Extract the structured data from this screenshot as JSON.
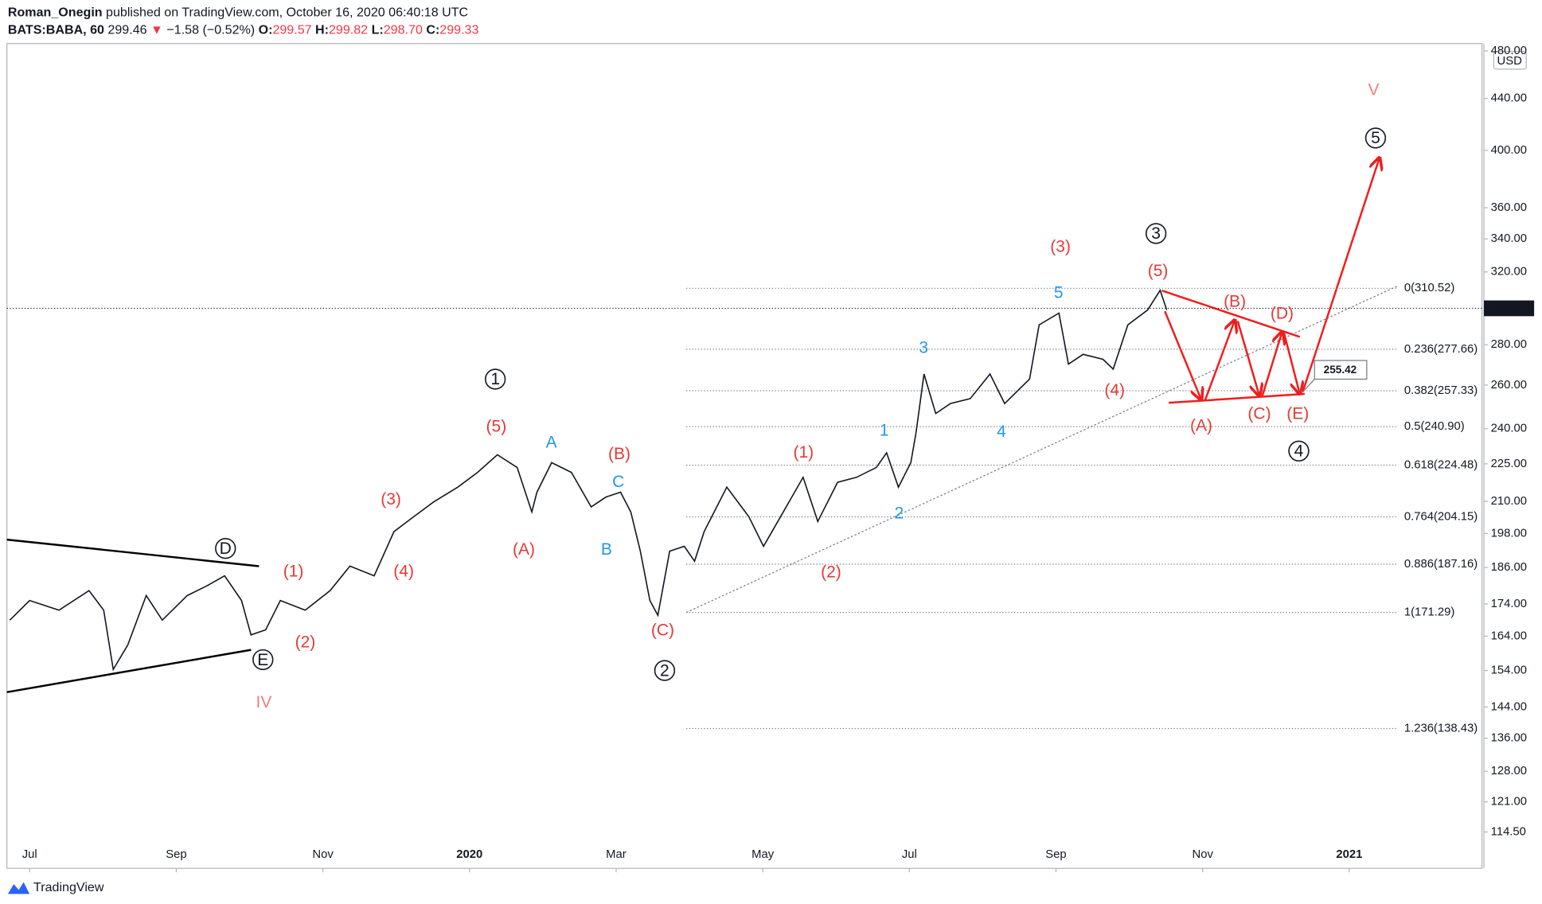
{
  "header": {
    "line1": [
      {
        "text": "Roman_Onegin",
        "color": "#131722",
        "bold": true
      },
      {
        "text": " published on TradingView.com, October 16, 2020 06:40:18 UTC",
        "color": "#131722",
        "bold": false
      }
    ],
    "line2": [
      {
        "text": "BATS:BABA, 60",
        "color": "#131722",
        "bold": true
      },
      {
        "text": "  299.46 ",
        "color": "#131722",
        "bold": false
      },
      {
        "text": "▼",
        "color": "#f23645",
        "bold": false
      },
      {
        "text": " −1.58 (−0.52%) ",
        "color": "#131722",
        "bold": false
      },
      {
        "text": "O:",
        "color": "#131722",
        "bold": true
      },
      {
        "text": "299.57 ",
        "color": "#f23645",
        "bold": false
      },
      {
        "text": "H:",
        "color": "#131722",
        "bold": true
      },
      {
        "text": "299.82 ",
        "color": "#f23645",
        "bold": false
      },
      {
        "text": "L:",
        "color": "#131722",
        "bold": true
      },
      {
        "text": "298.70 ",
        "color": "#f23645",
        "bold": false
      },
      {
        "text": "C:",
        "color": "#131722",
        "bold": true
      },
      {
        "text": "299.33",
        "color": "#f23645",
        "bold": false
      }
    ]
  },
  "chart_data": {
    "type": "line",
    "color": "#131722",
    "log_scale": true,
    "currency": "USD",
    "x": [
      -0.27,
      0,
      0.4,
      0.81,
      1.01,
      1.14,
      1.34,
      1.59,
      1.81,
      2.15,
      2.42,
      2.66,
      2.89,
      3.02,
      3.22,
      3.42,
      3.76,
      4.1,
      4.37,
      4.7,
      4.97,
      5.24,
      5.51,
      5.84,
      6.11,
      6.38,
      6.65,
      6.85,
      6.92,
      7.12,
      7.39,
      7.66,
      7.86,
      8.06,
      8.2,
      8.33,
      8.46,
      8.57,
      8.73,
      8.93,
      9.07,
      9.2,
      9.51,
      9.81,
      10.01,
      10.28,
      10.55,
      10.75,
      11.02,
      11.28,
      11.55,
      11.69,
      11.85,
      12.02,
      12.09,
      12.2,
      12.36,
      12.56,
      12.83,
      13.1,
      13.3,
      13.64,
      13.77,
      14.04,
      14.17,
      14.37,
      14.64,
      14.78,
      14.98,
      15.25,
      15.42,
      15.51
    ],
    "values": [
      168.9,
      175.1,
      172.0,
      178.3,
      172.0,
      154.3,
      161.4,
      176.7,
      168.9,
      176.7,
      179.9,
      183.2,
      175.1,
      164.4,
      165.9,
      175.1,
      172.0,
      178.3,
      186.5,
      183.2,
      198.7,
      204.2,
      209.8,
      215.6,
      221.5,
      228.8,
      223.5,
      206.0,
      213.6,
      225.5,
      221.5,
      207.9,
      211.7,
      213.6,
      206.0,
      191.7,
      175.1,
      170.4,
      191.7,
      193.4,
      188.2,
      198.7,
      215.6,
      204.2,
      193.4,
      206.0,
      219.5,
      202.4,
      217.5,
      219.5,
      223.5,
      229.6,
      215.6,
      225.5,
      238.0,
      265.3,
      246.8,
      251.3,
      253.6,
      265.3,
      251.3,
      262.9,
      290.4,
      296.7,
      270.2,
      275.1,
      272.6,
      267.7,
      290.4,
      298.4,
      309.4,
      298.4
    ],
    "xlim": [
      -0.31,
      19.81
    ],
    "xticks": [
      {
        "value": 0,
        "label": "Jul"
      },
      {
        "value": 2,
        "label": "Sep"
      },
      {
        "value": 4,
        "label": "Nov"
      },
      {
        "value": 6,
        "label": "2020"
      },
      {
        "value": 8,
        "label": "Mar"
      },
      {
        "value": 10,
        "label": "May"
      },
      {
        "value": 12,
        "label": "Jul"
      },
      {
        "value": 14,
        "label": "Sep"
      },
      {
        "value": 16,
        "label": "Nov"
      },
      {
        "value": 18,
        "label": "2021"
      }
    ],
    "ylim": [
      107.1,
      484
    ],
    "yticks": [
      {
        "value": 114.5,
        "label": "114.50"
      },
      {
        "value": 121,
        "label": "121.00"
      },
      {
        "value": 128,
        "label": "128.00"
      },
      {
        "value": 136,
        "label": "136.00"
      },
      {
        "value": 144,
        "label": "144.00"
      },
      {
        "value": 154,
        "label": "154.00"
      },
      {
        "value": 164,
        "label": "164.00"
      },
      {
        "value": 174,
        "label": "174.00"
      },
      {
        "value": 186,
        "label": "186.00"
      },
      {
        "value": 198,
        "label": "198.00"
      },
      {
        "value": 210,
        "label": "210.00"
      },
      {
        "value": 225,
        "label": "225.00"
      },
      {
        "value": 240,
        "label": "240.00"
      },
      {
        "value": 260,
        "label": "260.00"
      },
      {
        "value": 280,
        "label": "280.00"
      },
      {
        "value": 320,
        "label": "320.00"
      },
      {
        "value": 340,
        "label": "340.00"
      },
      {
        "value": 360,
        "label": "360.00"
      },
      {
        "value": 400,
        "label": "400.00"
      },
      {
        "value": 440,
        "label": "440.00"
      },
      {
        "value": 480,
        "label": "480.00"
      }
    ],
    "last_price": {
      "value": 299.33,
      "label": "299.33"
    },
    "fib_levels": [
      {
        "value": 310.52,
        "label": "0(310.52)"
      },
      {
        "value": 277.66,
        "label": "0.236(277.66)"
      },
      {
        "value": 257.33,
        "label": "0.382(257.33)"
      },
      {
        "value": 240.9,
        "label": "0.5(240.90)"
      },
      {
        "value": 224.48,
        "label": "0.618(224.48)"
      },
      {
        "value": 204.15,
        "label": "0.764(204.15)"
      },
      {
        "value": 187.16,
        "label": "0.886(187.16)"
      },
      {
        "value": 171.29,
        "label": "1(171.29)"
      },
      {
        "value": 138.43,
        "label": "1.236(138.43)"
      }
    ],
    "annotations": [
      {
        "text": "(5)",
        "color": "#e53935"
      },
      {
        "text": "A",
        "color": "#2196f3"
      },
      {
        "text": "(B)",
        "color": "#e53935"
      },
      {
        "text": "C",
        "color": "#2196f3"
      },
      {
        "text": "(A)",
        "color": "#e53935"
      },
      {
        "text": "B",
        "color": "#2196f3"
      },
      {
        "text": "(3)",
        "color": "#e53935"
      },
      {
        "text": "(4)",
        "color": "#e53935"
      },
      {
        "text": "(1)",
        "color": "#e53935"
      },
      {
        "text": "(2)",
        "color": "#e53935"
      },
      {
        "text": "(C)",
        "color": "#e53935"
      },
      {
        "text": "(1)",
        "color": "#e53935"
      },
      {
        "text": "(2)",
        "color": "#e53935"
      },
      {
        "text": "1",
        "color": "#2196f3"
      },
      {
        "text": "2",
        "color": "#2196f3"
      },
      {
        "text": "3",
        "color": "#2196f3"
      },
      {
        "text": "4",
        "color": "#2196f3"
      },
      {
        "text": "5",
        "color": "#2196f3"
      },
      {
        "text": "(3)",
        "color": "#e53935"
      },
      {
        "text": "(4)",
        "color": "#e53935"
      },
      {
        "text": "(5)",
        "color": "#e53935"
      },
      {
        "text": "(B)",
        "color": "#e53935"
      },
      {
        "text": "(D)",
        "color": "#e53935"
      },
      {
        "text": "(A)",
        "color": "#e53935"
      },
      {
        "text": "(C)",
        "color": "#e53935"
      },
      {
        "text": "(E)",
        "color": "#e53935"
      },
      {
        "text": "IV",
        "color": "#f08080"
      },
      {
        "text": "V",
        "color": "#f08080"
      },
      {
        "text": "1",
        "color": "#131722",
        "circled": true
      },
      {
        "text": "2",
        "color": "#131722",
        "circled": true
      },
      {
        "text": "3",
        "color": "#131722",
        "circled": true
      },
      {
        "text": "4",
        "color": "#131722",
        "circled": true
      },
      {
        "text": "5",
        "color": "#131722",
        "circled": true
      },
      {
        "text": "D",
        "color": "#131722",
        "circled": true
      },
      {
        "text": "E",
        "color": "#131722",
        "circled": true
      }
    ],
    "target_label": "255.42"
  },
  "branding": "TradingView"
}
